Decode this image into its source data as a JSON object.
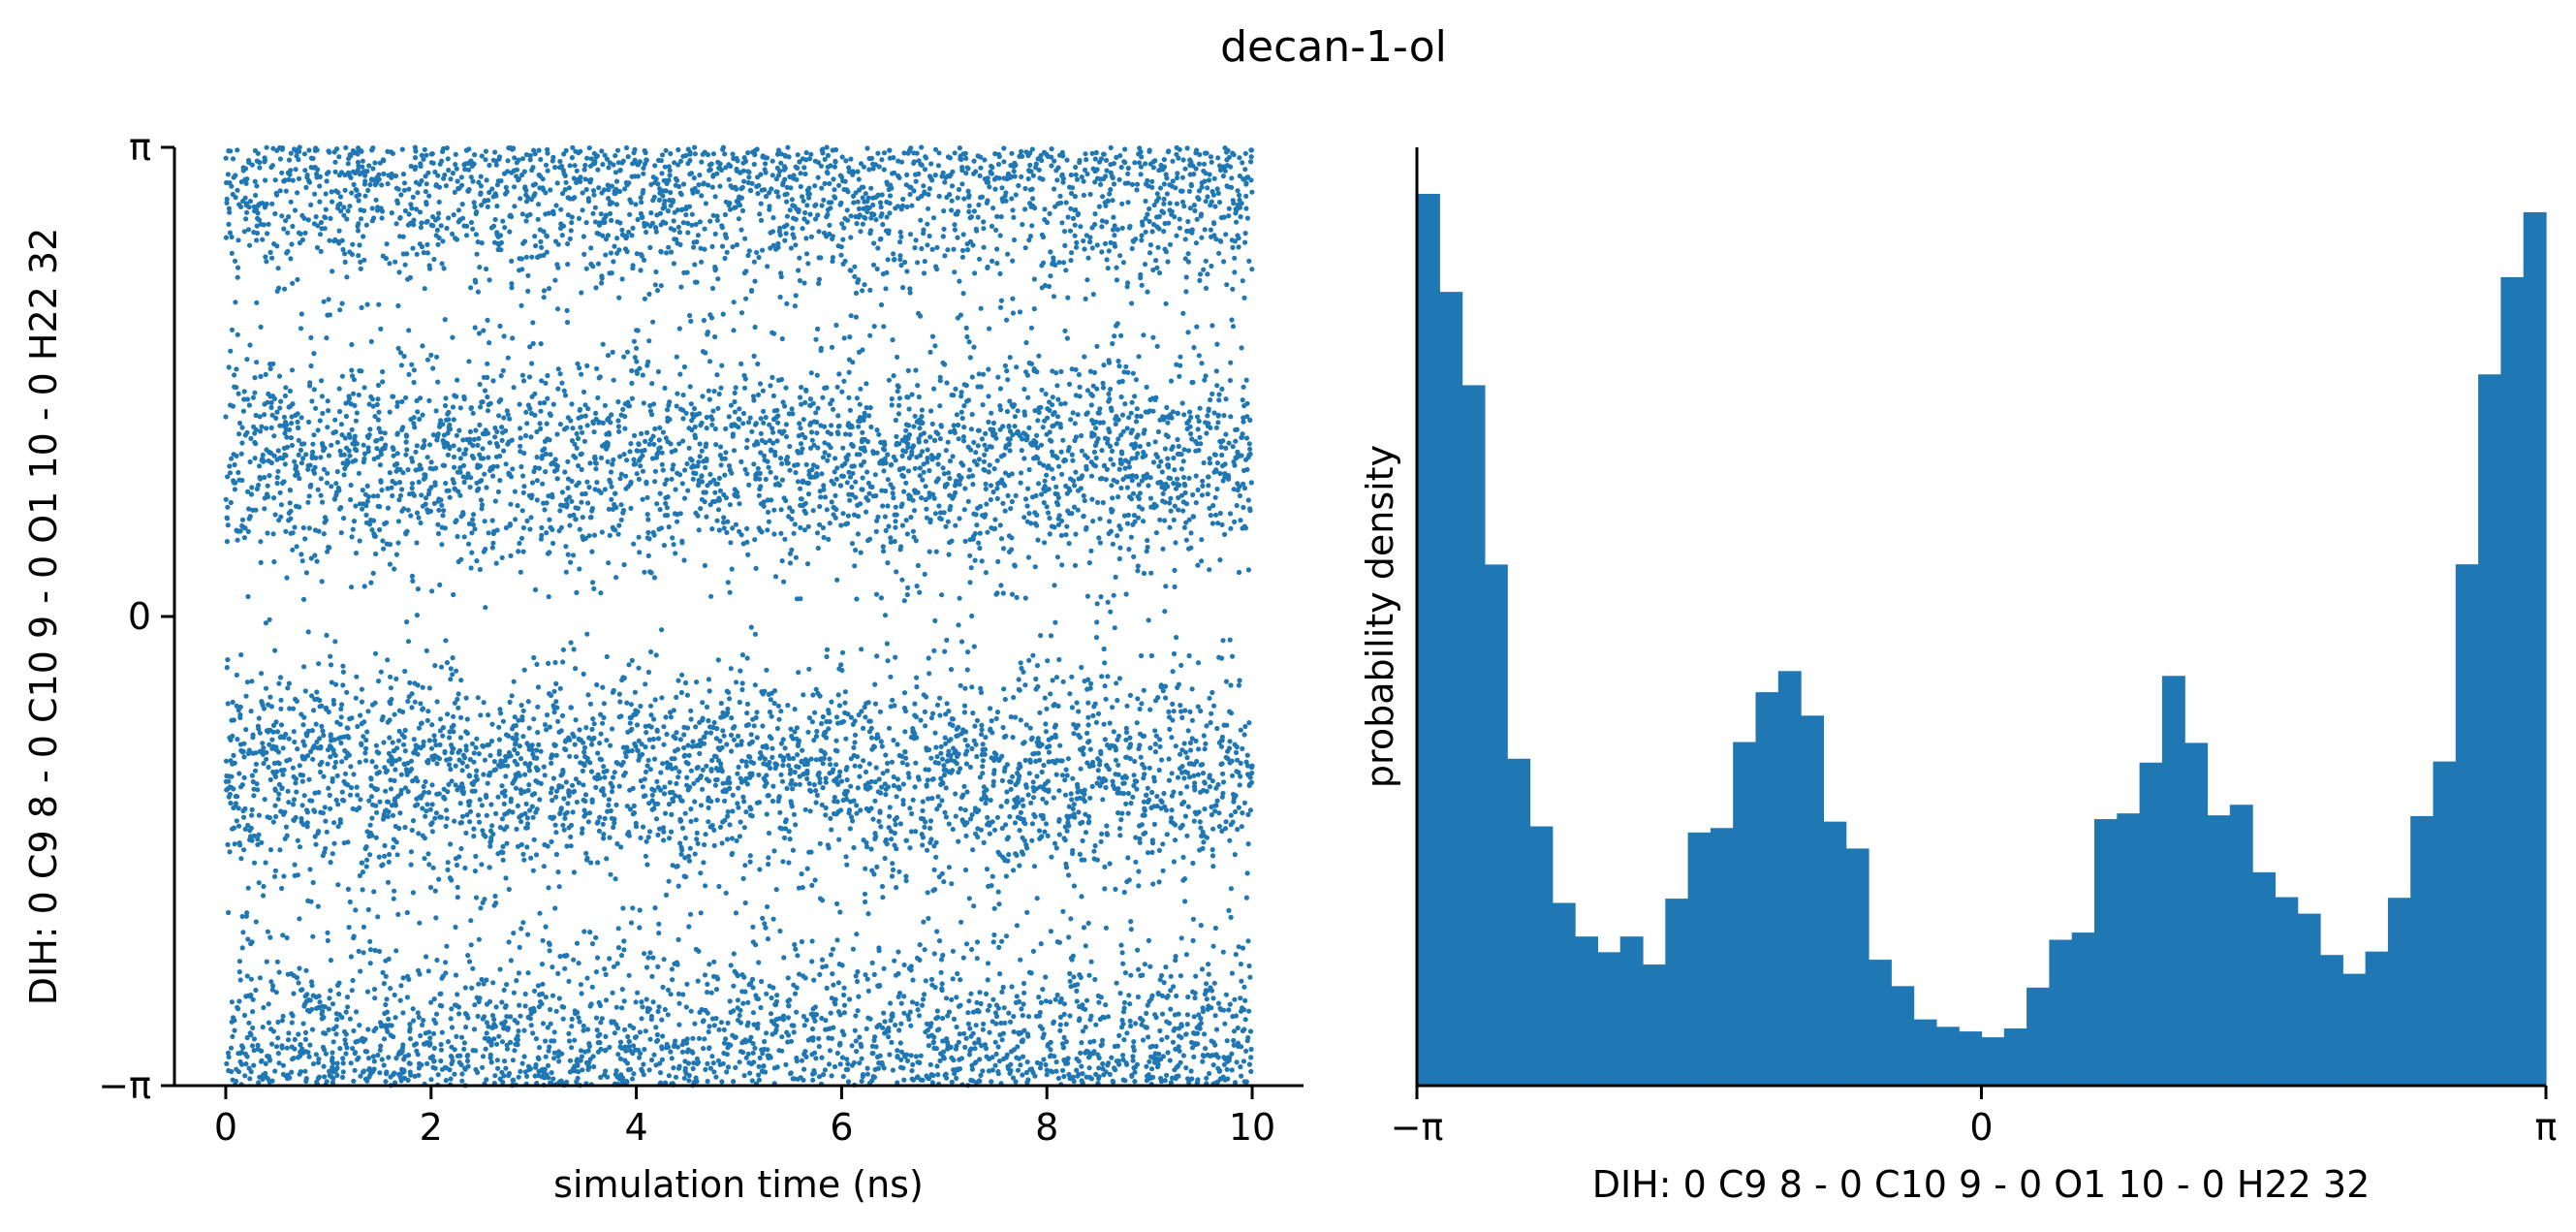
{
  "figure": {
    "title": "decan-1-ol",
    "color": "#1f77b4"
  },
  "chart_data": [
    {
      "type": "scatter",
      "xlabel": "simulation time (ns)",
      "ylabel": "DIH:  0 C9 8 -  0 C10 9 -  0 O1 10 -  0 H22 32",
      "xlim": [
        -0.5,
        10.5
      ],
      "ylim": [
        -3.14159,
        3.14159
      ],
      "xticks": [
        0,
        2,
        4,
        6,
        8,
        10
      ],
      "xtick_labels": [
        "0",
        "2",
        "4",
        "6",
        "8",
        "10"
      ],
      "yticks": [
        -3.14159,
        0,
        3.14159
      ],
      "ytick_labels": [
        "−π",
        "0",
        "π"
      ],
      "grid": false,
      "n_points": 10000,
      "x_range": [
        0,
        10
      ],
      "density_modes": [
        {
          "center": 3.14159,
          "weight": 0.44
        },
        {
          "center": 1.05,
          "weight": 0.28
        },
        {
          "center": -1.05,
          "weight": 0.28
        }
      ]
    },
    {
      "type": "histogram",
      "xlabel": "DIH:  0 C9 8 -  0 C10 9 -  0 O1 10 -  0 H22 32",
      "ylabel": "probability density",
      "xlim": [
        -3.14159,
        3.14159
      ],
      "xticks": [
        -3.14159,
        0,
        3.14159
      ],
      "xtick_labels": [
        "−π",
        "0",
        "π"
      ],
      "yticks": [],
      "n_bins": 50,
      "bin_edges_range": [
        -3.14159,
        3.14159
      ],
      "values": [
        0.9624,
        0.8566,
        0.7559,
        0.5624,
        0.3528,
        0.2798,
        0.1972,
        0.1609,
        0.144,
        0.1609,
        0.1307,
        0.2018,
        0.2732,
        0.278,
        0.3708,
        0.4246,
        0.4474,
        0.3993,
        0.2849,
        0.2559,
        0.1359,
        0.1074,
        0.0715,
        0.0635,
        0.0585,
        0.0522,
        0.0617,
        0.1058,
        0.1574,
        0.1652,
        0.2876,
        0.2938,
        0.3486,
        0.4422,
        0.3699,
        0.2917,
        0.3031,
        0.2303,
        0.2034,
        0.1856,
        0.141,
        0.1207,
        0.1447,
        0.2027,
        0.2909,
        0.3498,
        0.5626,
        0.7676,
        0.8725,
        0.9426
      ]
    }
  ]
}
